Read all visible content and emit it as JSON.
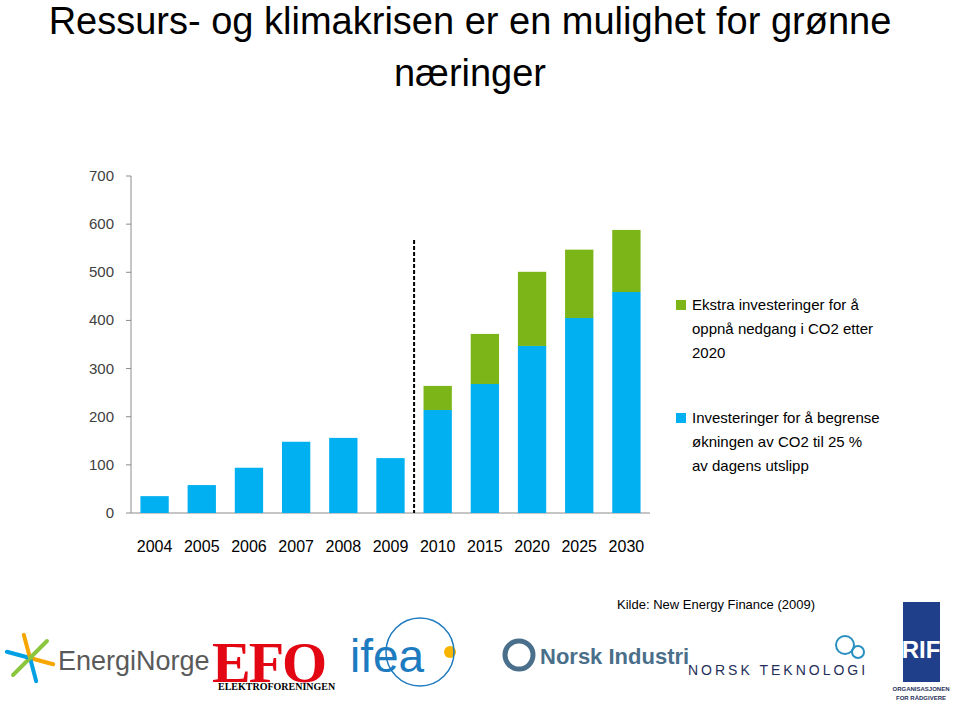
{
  "chart_data": {
    "type": "bar",
    "title": "Ressurs- og klimakrisen er en mulighet for grønne næringer",
    "categories": [
      "2004",
      "2005",
      "2006",
      "2007",
      "2008",
      "2009",
      "2010",
      "2015",
      "2020",
      "2025",
      "2030"
    ],
    "series": [
      {
        "name": "Investeringer for å begrense økningen av CO2 til 25 % av dagens utslipp",
        "color": "#00b0f0",
        "values": [
          35,
          58,
          94,
          148,
          156,
          114,
          214,
          268,
          347,
          405,
          459
        ]
      },
      {
        "name": "Ekstra investeringer for å oppnå nedgang i CO2 etter 2020",
        "color": "#7cb518",
        "values": [
          null,
          null,
          null,
          null,
          null,
          null,
          50,
          104,
          154,
          142,
          129
        ]
      }
    ],
    "stacked": true,
    "ylim": [
      0,
      700
    ],
    "yticks": [
      0,
      100,
      200,
      300,
      400,
      500,
      600,
      700
    ],
    "grid": false,
    "legend": "right"
  },
  "footer": {
    "source": "Kilde: New Energy Finance (2009)",
    "logos": [
      "EnergiNorge",
      "EFO",
      "ELEKTROFORENINGEN",
      "ifea",
      "Norsk Industri",
      "NORSK TEKNOLOGI",
      "RIF",
      "ORGANISASJONEN",
      "FOR RÅDGIVERE"
    ]
  }
}
